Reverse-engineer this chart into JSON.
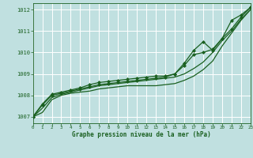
{
  "title": "Graphe pression niveau de la mer (hPa)",
  "bg_color": "#c0e0e0",
  "grid_color": "#ffffff",
  "line_color": "#1a6020",
  "hours": [
    0,
    1,
    2,
    3,
    4,
    5,
    6,
    7,
    8,
    9,
    10,
    11,
    12,
    13,
    14,
    15,
    16,
    17,
    18,
    19,
    20,
    21,
    22,
    23
  ],
  "line1": [
    1007.0,
    1007.2,
    1007.8,
    1008.0,
    1008.1,
    1008.15,
    1008.2,
    1008.3,
    1008.35,
    1008.4,
    1008.45,
    1008.45,
    1008.45,
    1008.45,
    1008.5,
    1008.55,
    1008.7,
    1008.9,
    1009.2,
    1009.6,
    1010.3,
    1010.9,
    1011.5,
    1012.0
  ],
  "line2": [
    1007.0,
    1007.4,
    1007.9,
    1008.05,
    1008.15,
    1008.25,
    1008.35,
    1008.45,
    1008.5,
    1008.55,
    1008.6,
    1008.65,
    1008.7,
    1008.75,
    1008.8,
    1008.85,
    1009.0,
    1009.25,
    1009.55,
    1010.0,
    1010.55,
    1011.0,
    1011.55,
    1012.0
  ],
  "line3": [
    1007.0,
    1007.55,
    1008.0,
    1008.1,
    1008.2,
    1008.3,
    1008.4,
    1008.5,
    1008.55,
    1008.6,
    1008.65,
    1008.7,
    1008.75,
    1008.8,
    1008.85,
    1009.0,
    1009.4,
    1009.9,
    1010.0,
    1010.15,
    1010.65,
    1011.1,
    1011.65,
    1012.1
  ],
  "line4": [
    1007.0,
    1007.6,
    1008.05,
    1008.15,
    1008.25,
    1008.35,
    1008.5,
    1008.6,
    1008.65,
    1008.7,
    1008.75,
    1008.8,
    1008.85,
    1008.9,
    1008.9,
    1009.0,
    1009.5,
    1010.1,
    1010.5,
    1010.1,
    1010.65,
    1011.5,
    1011.75,
    1012.1
  ],
  "ylim": [
    1006.7,
    1012.3
  ],
  "yticks": [
    1007,
    1008,
    1009,
    1010,
    1011,
    1012
  ],
  "xlim": [
    0,
    23
  ],
  "xticks": [
    0,
    1,
    2,
    3,
    4,
    5,
    6,
    7,
    8,
    9,
    10,
    11,
    12,
    13,
    14,
    15,
    16,
    17,
    18,
    19,
    20,
    21,
    22,
    23
  ]
}
